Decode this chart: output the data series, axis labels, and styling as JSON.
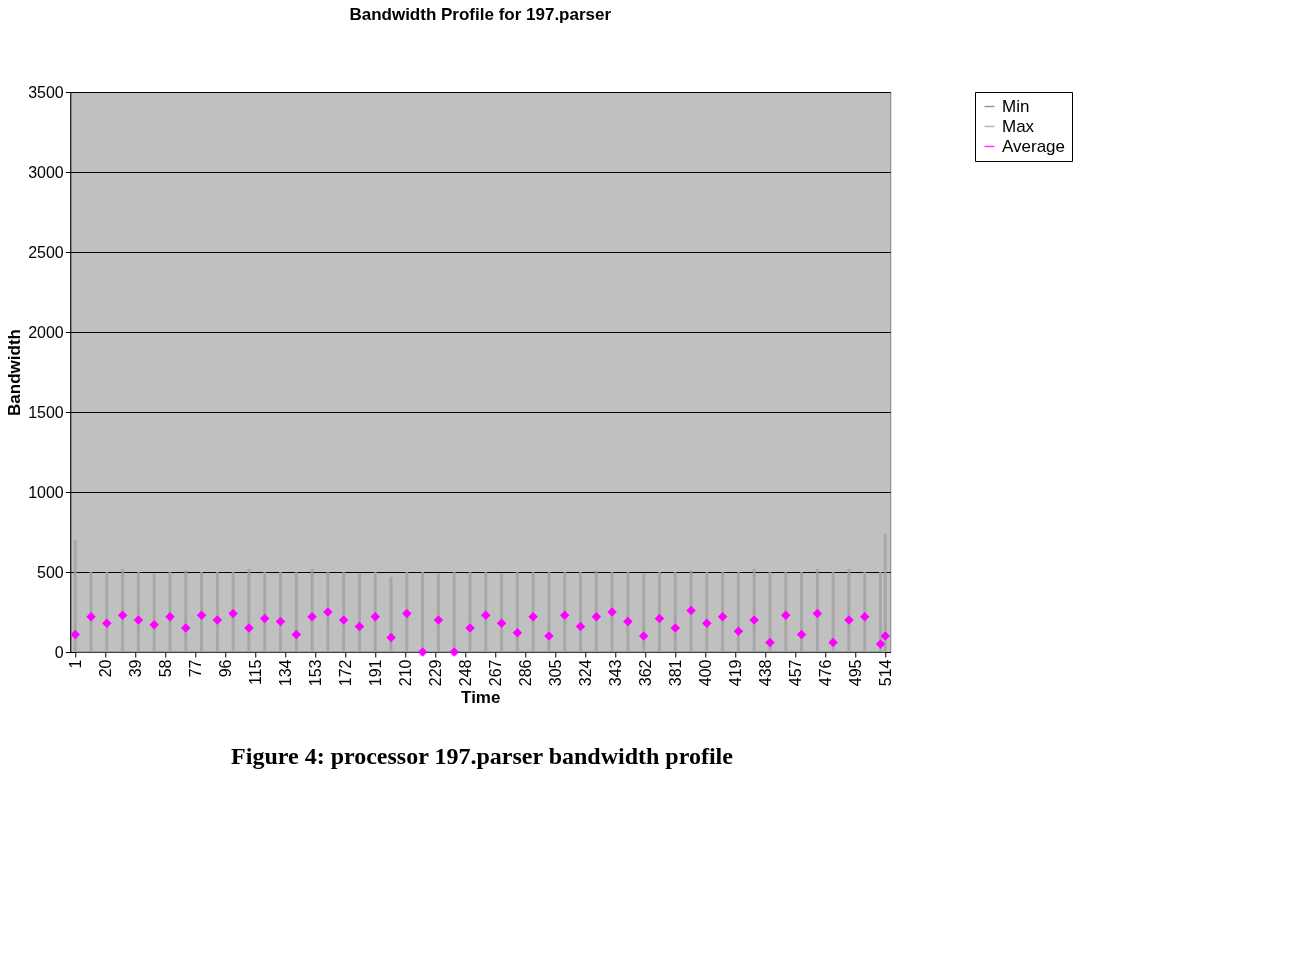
{
  "chart_data": {
    "type": "line",
    "title": "Bandwidth Profile for 197.parser",
    "xlabel": "Time",
    "ylabel": "Bandwidth",
    "x": [
      1,
      11,
      21,
      31,
      41,
      51,
      61,
      71,
      81,
      91,
      101,
      111,
      121,
      131,
      141,
      151,
      161,
      171,
      181,
      191,
      201,
      211,
      221,
      231,
      241,
      251,
      261,
      271,
      281,
      291,
      301,
      311,
      321,
      331,
      341,
      351,
      361,
      371,
      381,
      391,
      401,
      411,
      421,
      431,
      441,
      451,
      461,
      471,
      481,
      491,
      501,
      511,
      514
    ],
    "series": [
      {
        "name": "Min",
        "color": "#808080",
        "values": [
          0,
          0,
          0,
          0,
          0,
          0,
          0,
          0,
          0,
          0,
          0,
          0,
          0,
          0,
          0,
          0,
          0,
          0,
          0,
          0,
          0,
          0,
          0,
          0,
          0,
          0,
          0,
          0,
          0,
          0,
          0,
          0,
          0,
          0,
          0,
          0,
          0,
          0,
          0,
          0,
          0,
          0,
          0,
          0,
          0,
          0,
          0,
          0,
          0,
          0,
          0,
          0,
          0
        ]
      },
      {
        "name": "Max",
        "type": "bar",
        "color": "#a0a0a0",
        "values": [
          700,
          500,
          500,
          520,
          500,
          490,
          500,
          510,
          500,
          500,
          500,
          520,
          500,
          500,
          500,
          520,
          500,
          500,
          490,
          500,
          470,
          500,
          500,
          490,
          500,
          500,
          500,
          490,
          500,
          500,
          500,
          500,
          500,
          510,
          500,
          500,
          490,
          500,
          500,
          510,
          500,
          500,
          500,
          520,
          500,
          500,
          500,
          520,
          500,
          520,
          500,
          500,
          740
        ]
      },
      {
        "name": "Average",
        "type": "scatter",
        "marker": "diamond",
        "color": "#ff00ff",
        "values": [
          110,
          220,
          180,
          230,
          200,
          170,
          220,
          150,
          230,
          200,
          240,
          150,
          210,
          190,
          110,
          220,
          250,
          200,
          160,
          220,
          90,
          240,
          0,
          200,
          0,
          150,
          230,
          180,
          120,
          220,
          100,
          230,
          160,
          220,
          250,
          190,
          100,
          210,
          150,
          260,
          180,
          220,
          130,
          200,
          60,
          230,
          110,
          240,
          60,
          200,
          220,
          50,
          100
        ]
      }
    ],
    "xlim": [
      1,
      514
    ],
    "xticks": [
      1,
      20,
      39,
      58,
      77,
      96,
      115,
      134,
      153,
      172,
      191,
      210,
      229,
      248,
      267,
      286,
      305,
      324,
      343,
      362,
      381,
      400,
      419,
      438,
      457,
      476,
      495,
      514
    ],
    "ylim": [
      0,
      3500
    ],
    "yticks": [
      0,
      500,
      1000,
      1500,
      2000,
      2500,
      3000,
      3500
    ],
    "grid": "y",
    "legend": "right",
    "annotations": [
      "Figure 4: processor 197.parser bandwidth profile"
    ]
  }
}
